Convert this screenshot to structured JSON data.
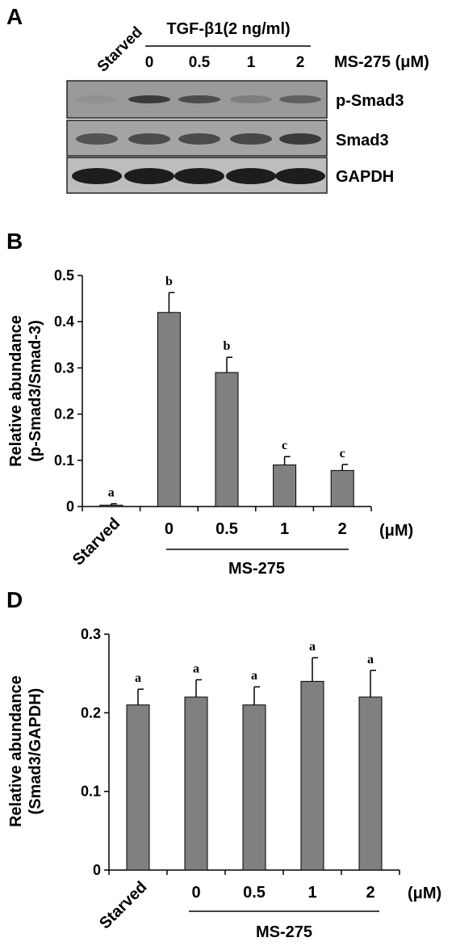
{
  "panel_a": {
    "letter": "A",
    "treatment_label": "TGF-β1(2 ng/ml)",
    "starved_label": "Starved",
    "dose_header": "MS-275 (μM)",
    "lanes": [
      "0",
      "0.5",
      "1",
      "2"
    ],
    "blots": [
      {
        "label": "p-Smad3",
        "intensity": [
          0.05,
          0.75,
          0.6,
          0.2,
          0.45
        ],
        "background": "#9a9a9a"
      },
      {
        "label": "Smad3",
        "intensity": [
          0.55,
          0.6,
          0.6,
          0.65,
          0.75
        ],
        "background": "#a4a4a4"
      },
      {
        "label": "GAPDH",
        "intensity": [
          1.0,
          1.0,
          1.0,
          1.0,
          1.0
        ],
        "background": "#bdbdbd"
      }
    ]
  },
  "chart_data": [
    {
      "type": "bar",
      "panel": "B",
      "categories": [
        "Starved",
        "0",
        "0.5",
        "1",
        "2"
      ],
      "values": [
        0.003,
        0.42,
        0.29,
        0.09,
        0.078
      ],
      "errors": [
        0.003,
        0.043,
        0.033,
        0.018,
        0.013
      ],
      "significance": [
        "a",
        "b",
        "b",
        "c",
        "c"
      ],
      "ylabel_line1": "Relative abundance",
      "ylabel_line2": "(p-Smad3/Smad-3)",
      "xlabel": "MS-275",
      "unit": "(μM)",
      "ylim": [
        0,
        0.5
      ],
      "yticks": [
        "0",
        "0.1",
        "0.2",
        "0.3",
        "0.4",
        "0.5"
      ],
      "bar_color": "#808080"
    },
    {
      "type": "bar",
      "panel": "D",
      "categories": [
        "Starved",
        "0",
        "0.5",
        "1",
        "2"
      ],
      "values": [
        0.21,
        0.22,
        0.21,
        0.24,
        0.22
      ],
      "errors": [
        0.02,
        0.022,
        0.023,
        0.03,
        0.034
      ],
      "significance": [
        "a",
        "a",
        "a",
        "a",
        "a"
      ],
      "ylabel_line1": "Relative abundance",
      "ylabel_line2": "(Smad3/GAPDH)",
      "xlabel": "MS-275",
      "unit": "(μM)",
      "ylim": [
        0,
        0.3
      ],
      "yticks": [
        "0",
        "0.1",
        "0.2",
        "0.3"
      ],
      "bar_color": "#808080"
    }
  ]
}
